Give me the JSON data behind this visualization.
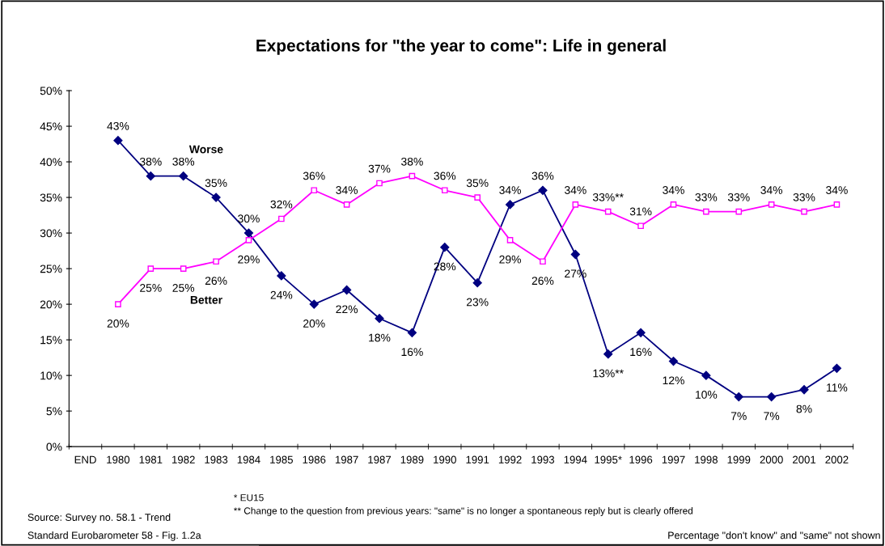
{
  "chart_data": {
    "type": "line",
    "title": "Expectations for \"the year to come\": Life in general",
    "categories": [
      "END",
      "1980",
      "1981",
      "1982",
      "1983",
      "1984",
      "1985",
      "1986",
      "1987",
      "1987",
      "1989",
      "1990",
      "1991",
      "1992",
      "1993",
      "1994",
      "1995*",
      "1996",
      "1997",
      "1998",
      "1999",
      "2000",
      "2001",
      "2002"
    ],
    "series": [
      {
        "name": "Worse",
        "color": "#000080",
        "marker": "diamond",
        "values": [
          null,
          43,
          38,
          38,
          35,
          30,
          24,
          20,
          22,
          18,
          16,
          28,
          23,
          34,
          36,
          27,
          13,
          16,
          12,
          10,
          7,
          7,
          8,
          11
        ],
        "value_labels": [
          null,
          "43%",
          "38%",
          "38%",
          "35%",
          "30%",
          "24%",
          "20%",
          "22%",
          "18%",
          "16%",
          "28%",
          "23%",
          "34%",
          "36%",
          "27%",
          "13%**",
          "16%",
          "12%",
          "10%",
          "7%",
          "7%",
          "8%",
          "11%"
        ]
      },
      {
        "name": "Better",
        "color": "#ff00ff",
        "marker": "square",
        "values": [
          null,
          20,
          25,
          25,
          26,
          29,
          32,
          36,
          34,
          37,
          38,
          36,
          35,
          29,
          26,
          34,
          33,
          31,
          34,
          33,
          33,
          34,
          33,
          34
        ],
        "value_labels": [
          null,
          "20%",
          "25%",
          "25%",
          "26%",
          "29%",
          "32%",
          "36%",
          "34%",
          "37%",
          "38%",
          "36%",
          "35%",
          "29%",
          "26%",
          "34%",
          "33%**",
          "31%",
          "34%",
          "33%",
          "33%",
          "34%",
          "33%",
          "34%"
        ]
      }
    ],
    "ylim": [
      0,
      50
    ],
    "yticks": [
      {
        "value": 0,
        "label": "0%"
      },
      {
        "value": 5,
        "label": "5%"
      },
      {
        "value": 10,
        "label": "10%"
      },
      {
        "value": 15,
        "label": "15%"
      },
      {
        "value": 20,
        "label": "20%"
      },
      {
        "value": 25,
        "label": "25%"
      },
      {
        "value": 30,
        "label": "30%"
      },
      {
        "value": 35,
        "label": "35%"
      },
      {
        "value": 40,
        "label": "40%"
      },
      {
        "value": 45,
        "label": "45%"
      },
      {
        "value": 50,
        "label": "50%"
      }
    ],
    "grid": false,
    "legend": false,
    "line_style": "solid",
    "annotations": [
      "* EU15",
      "** Change to the question from previous years: \"same\" is no longer a spontaneous reply but is clearly offered",
      "Source: Survey no. 58.1 - Trend",
      "Standard Eurobarometer 58 - Fig. 1.2a",
      "Percentage \"don't know\" and \"same\" not shown"
    ]
  }
}
